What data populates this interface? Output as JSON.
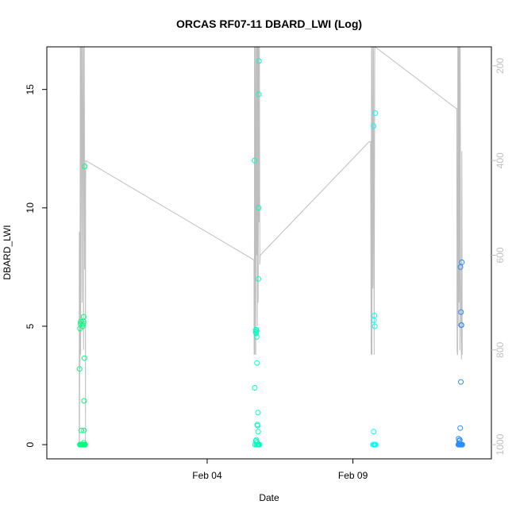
{
  "chart_data": {
    "type": "scatter",
    "title": "ORCAS RF07-11 DBARD_LWI (Log)",
    "xlabel": "Date",
    "ylabel": "DBARD_LWI",
    "x_ticks": [
      {
        "date": "2016-02-04",
        "label": "Feb 04"
      },
      {
        "date": "2016-02-09",
        "label": "Feb 09"
      }
    ],
    "y_ticks": [
      0,
      5,
      10,
      15
    ],
    "ylim": [
      -0.6,
      16.8
    ],
    "y2_ticks": [
      200,
      400,
      600,
      800,
      1000
    ],
    "y2lim": [
      1030,
      160
    ],
    "y2_reversed": true,
    "grid": false,
    "colors": {
      "point_green": "#00ff80",
      "point_teal": "#00ffc0",
      "point_cyan": "#00ffff",
      "point_blue": "#2c8cff",
      "line": "#bebebe",
      "axis": "#000000",
      "right_axis": "#bebebe"
    },
    "series": [
      {
        "color": "#00ff80",
        "points": [
          [
            "2016-01-30T15:00",
            3.2
          ],
          [
            "2016-01-30T15:20",
            4.9
          ],
          [
            "2016-01-30T15:40",
            5.1
          ],
          [
            "2016-01-30T16:00",
            5.2
          ],
          [
            "2016-01-30T16:30",
            0.6
          ],
          [
            "2016-01-30T17:30",
            5.0
          ],
          [
            "2016-01-30T18:00",
            5.1
          ],
          [
            "2016-01-30T18:10",
            5.2
          ],
          [
            "2016-01-30T18:20",
            5.4
          ],
          [
            "2016-01-30T18:30",
            0.6
          ],
          [
            "2016-01-30T18:40",
            1.85
          ],
          [
            "2016-01-30T19:00",
            3.65
          ],
          [
            "2016-01-30T19:10",
            11.75
          ],
          [
            "2016-01-30T15:10",
            0.0
          ],
          [
            "2016-01-30T15:40",
            0.0
          ],
          [
            "2016-01-30T16:10",
            0.0
          ],
          [
            "2016-01-30T16:40",
            0.0
          ],
          [
            "2016-01-30T17:10",
            0.0
          ],
          [
            "2016-01-30T17:40",
            0.0
          ],
          [
            "2016-01-30T18:10",
            0.0
          ],
          [
            "2016-01-30T18:30",
            0.08
          ],
          [
            "2016-01-30T18:50",
            0.0
          ],
          [
            "2016-01-30T19:10",
            0.0
          ],
          [
            "2016-01-30T19:30",
            0.0
          ]
        ]
      },
      {
        "color": "#00ffc0",
        "points": [
          [
            "2016-02-05T15:00",
            12.0
          ],
          [
            "2016-02-05T15:10",
            2.4
          ],
          [
            "2016-02-05T16:00",
            4.75
          ],
          [
            "2016-02-05T16:10",
            4.85
          ],
          [
            "2016-02-05T16:20",
            4.7
          ],
          [
            "2016-02-05T16:30",
            4.85
          ],
          [
            "2016-02-05T16:40",
            4.8
          ],
          [
            "2016-02-05T16:50",
            4.55
          ],
          [
            "2016-02-05T17:00",
            3.45
          ],
          [
            "2016-02-05T17:20",
            0.85
          ],
          [
            "2016-02-05T17:30",
            0.8
          ],
          [
            "2016-02-05T17:50",
            1.35
          ],
          [
            "2016-02-05T18:00",
            0.55
          ],
          [
            "2016-02-05T18:10",
            7.0
          ],
          [
            "2016-02-05T18:20",
            10.0
          ],
          [
            "2016-02-05T18:30",
            14.8
          ],
          [
            "2016-02-05T18:40",
            16.2
          ],
          [
            "2016-02-05T15:30",
            0.0
          ],
          [
            "2016-02-05T16:00",
            0.15
          ],
          [
            "2016-02-05T16:30",
            0.2
          ],
          [
            "2016-02-05T16:40",
            0.0
          ],
          [
            "2016-02-05T17:00",
            0.1
          ],
          [
            "2016-02-05T17:30",
            0.0
          ],
          [
            "2016-02-05T18:00",
            0.0
          ],
          [
            "2016-02-05T18:30",
            0.0
          ],
          [
            "2016-02-05T19:00",
            0.0
          ]
        ]
      },
      {
        "color": "#00ffff",
        "points": [
          [
            "2016-02-09T17:00",
            13.45
          ],
          [
            "2016-02-09T17:20",
            5.25
          ],
          [
            "2016-02-09T17:40",
            5.45
          ],
          [
            "2016-02-09T18:00",
            5.0
          ],
          [
            "2016-02-09T18:30",
            14.0
          ],
          [
            "2016-02-09T17:10",
            0.55
          ],
          [
            "2016-02-09T16:40",
            0.0
          ],
          [
            "2016-02-09T17:00",
            0.0
          ],
          [
            "2016-02-09T17:20",
            0.0
          ],
          [
            "2016-02-09T17:40",
            0.0
          ],
          [
            "2016-02-09T18:00",
            0.0
          ],
          [
            "2016-02-09T18:20",
            0.0
          ],
          [
            "2016-02-09T18:40",
            0.0
          ]
        ]
      },
      {
        "color": "#2c8cff",
        "points": [
          [
            "2016-02-12T15:00",
            0.25
          ],
          [
            "2016-02-12T15:30",
            0.15
          ],
          [
            "2016-02-12T16:00",
            0.2
          ],
          [
            "2016-02-12T16:20",
            0.7
          ],
          [
            "2016-02-12T16:30",
            7.5
          ],
          [
            "2016-02-12T16:50",
            2.65
          ],
          [
            "2016-02-12T17:00",
            5.6
          ],
          [
            "2016-02-12T17:10",
            5.05
          ],
          [
            "2016-02-12T17:20",
            5.05
          ],
          [
            "2016-02-12T17:40",
            7.7
          ],
          [
            "2016-02-12T14:50",
            0.0
          ],
          [
            "2016-02-12T15:10",
            0.0
          ],
          [
            "2016-02-12T15:30",
            0.05
          ],
          [
            "2016-02-12T15:50",
            0.0
          ],
          [
            "2016-02-12T16:10",
            0.0
          ],
          [
            "2016-02-12T16:30",
            0.0
          ],
          [
            "2016-02-12T16:50",
            0.0
          ],
          [
            "2016-02-12T17:10",
            0.0
          ],
          [
            "2016-02-12T17:30",
            0.0
          ],
          [
            "2016-02-12T17:50",
            0.0
          ],
          [
            "2016-02-12T18:00",
            0.0
          ]
        ]
      }
    ],
    "line_series": {
      "axis": "right",
      "color": "#bebebe",
      "points": [
        [
          "2016-01-30T14:40",
          1000
        ],
        [
          "2016-01-30T14:45",
          550
        ],
        [
          "2016-01-30T14:50",
          1000
        ],
        [
          "2016-01-30T15:10",
          780
        ],
        [
          "2016-01-30T15:20",
          830
        ],
        [
          "2016-01-30T15:30",
          160
        ],
        [
          "2016-01-30T15:50",
          810
        ],
        [
          "2016-01-30T16:10",
          160
        ],
        [
          "2016-01-30T16:30",
          160
        ],
        [
          "2016-01-30T17:00",
          700
        ],
        [
          "2016-01-30T17:20",
          160
        ],
        [
          "2016-01-30T17:40",
          160
        ],
        [
          "2016-01-30T18:10",
          800
        ],
        [
          "2016-01-30T18:30",
          160
        ],
        [
          "2016-01-30T18:50",
          160
        ],
        [
          "2016-01-30T19:10",
          630
        ],
        [
          "2016-01-30T19:30",
          420
        ],
        [
          "2016-01-30T19:40",
          420
        ],
        [
          "2016-01-30T19:50",
          1000
        ],
        [
          "2016-01-30T19:55",
          480
        ],
        [
          "2016-01-30T20:00",
          400
        ],
        [
          "2016-02-05T14:30",
          610
        ],
        [
          "2016-02-05T14:40",
          810
        ],
        [
          "2016-02-05T14:50",
          680
        ],
        [
          "2016-02-05T15:00",
          160
        ],
        [
          "2016-02-05T15:10",
          810
        ],
        [
          "2016-02-05T15:30",
          160
        ],
        [
          "2016-02-05T16:00",
          810
        ],
        [
          "2016-02-05T16:20",
          160
        ],
        [
          "2016-02-05T16:40",
          600
        ],
        [
          "2016-02-05T17:00",
          160
        ],
        [
          "2016-02-05T17:20",
          750
        ],
        [
          "2016-02-05T17:40",
          160
        ],
        [
          "2016-02-05T18:00",
          700
        ],
        [
          "2016-02-05T18:20",
          160
        ],
        [
          "2016-02-05T18:40",
          530
        ],
        [
          "2016-02-05T19:00",
          160
        ],
        [
          "2016-02-05T19:20",
          620
        ],
        [
          "2016-02-05T19:40",
          600
        ],
        [
          "2016-02-09T13:30",
          360
        ],
        [
          "2016-02-09T14:30",
          360
        ],
        [
          "2016-02-09T15:00",
          810
        ],
        [
          "2016-02-09T15:20",
          160
        ],
        [
          "2016-02-09T15:40",
          810
        ],
        [
          "2016-02-09T16:00",
          160
        ],
        [
          "2016-02-09T16:30",
          670
        ],
        [
          "2016-02-09T17:00",
          160
        ],
        [
          "2016-02-09T17:30",
          810
        ],
        [
          "2016-02-09T18:00",
          160
        ],
        [
          "2016-02-09T18:10",
          150
        ],
        [
          "2016-02-12T13:00",
          290
        ],
        [
          "2016-02-12T13:30",
          290
        ],
        [
          "2016-02-12T13:45",
          800
        ],
        [
          "2016-02-12T14:00",
          810
        ],
        [
          "2016-02-12T14:10",
          810
        ],
        [
          "2016-02-12T14:20",
          160
        ],
        [
          "2016-02-12T14:40",
          750
        ],
        [
          "2016-02-12T15:00",
          160
        ],
        [
          "2016-02-12T15:20",
          700
        ],
        [
          "2016-02-12T15:40",
          160
        ],
        [
          "2016-02-12T16:00",
          800
        ],
        [
          "2016-02-12T16:20",
          160
        ],
        [
          "2016-02-12T16:40",
          640
        ],
        [
          "2016-02-12T17:00",
          740
        ],
        [
          "2016-02-12T17:20",
          820
        ],
        [
          "2016-02-12T17:40",
          380
        ],
        [
          "2016-02-12T18:00",
          810
        ]
      ]
    }
  }
}
